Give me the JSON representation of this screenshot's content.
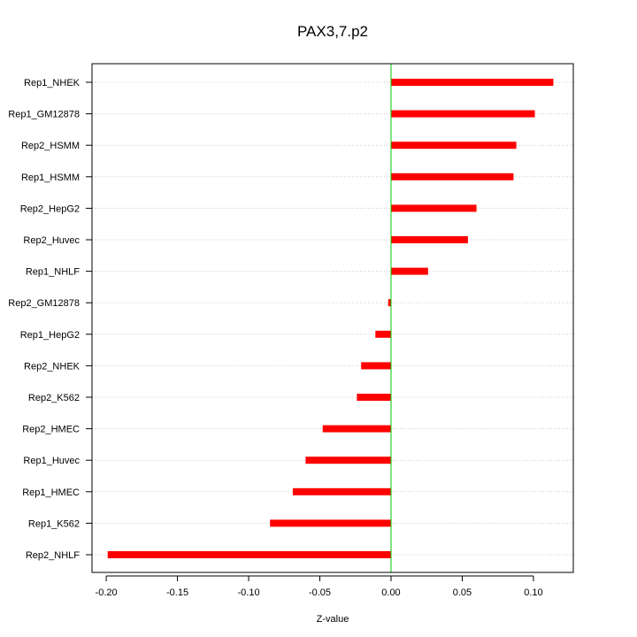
{
  "chart_data": {
    "type": "bar",
    "orientation": "horizontal",
    "title": "PAX3,7.p2",
    "xlabel": "Z-value",
    "ylabel": "",
    "xlim": [
      -0.21,
      0.128
    ],
    "xticks": [
      -0.2,
      -0.15,
      -0.1,
      -0.05,
      0.0,
      0.05,
      0.1
    ],
    "xtick_labels": [
      "-0.20",
      "-0.15",
      "-0.10",
      "-0.05",
      "0.00",
      "0.05",
      "0.10"
    ],
    "grid": "horizontal dotted",
    "bar_color": "#ff0000",
    "zero_line_color": "#00cc00",
    "categories": [
      "Rep1_NHEK",
      "Rep1_GM12878",
      "Rep2_HSMM",
      "Rep1_HSMM",
      "Rep2_HepG2",
      "Rep2_Huvec",
      "Rep1_NHLF",
      "Rep2_GM12878",
      "Rep1_HepG2",
      "Rep2_NHEK",
      "Rep2_K562",
      "Rep2_HMEC",
      "Rep1_Huvec",
      "Rep1_HMEC",
      "Rep1_K562",
      "Rep2_NHLF"
    ],
    "values": [
      0.114,
      0.101,
      0.088,
      0.086,
      0.06,
      0.054,
      0.026,
      -0.002,
      -0.011,
      -0.021,
      -0.024,
      -0.048,
      -0.06,
      -0.069,
      -0.085,
      -0.199
    ]
  }
}
